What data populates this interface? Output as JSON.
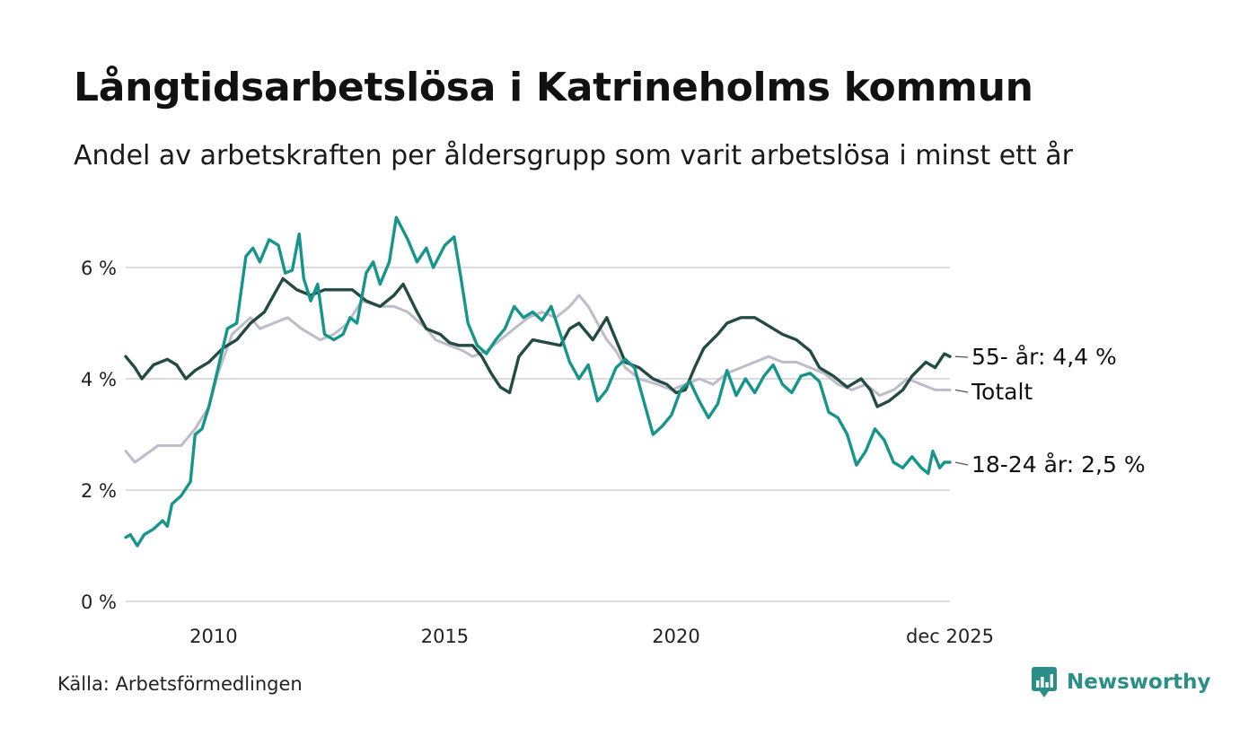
{
  "header": {
    "title": "Långtidsarbetslösa i Katrineholms kommun",
    "subtitle": "Andel av arbetskraften per åldersgrupp som varit arbetslösa i minst ett år"
  },
  "footer": {
    "source": "Källa: Arbetsförmedlingen",
    "brand": "Newsworthy"
  },
  "colors": {
    "age_55": "#244b43",
    "total": "#bfbcca",
    "age_18_24": "#16958a",
    "grid": "#dcdcdc",
    "brand": "#2a8f87"
  },
  "chart_data": {
    "type": "line",
    "title": "Långtidsarbetslösa i Katrineholms kommun",
    "xlabel": "",
    "ylabel": "",
    "ylim": [
      0,
      7
    ],
    "xlim": [
      2008.1,
      2025.92
    ],
    "x_ticks": [
      {
        "value": 2010,
        "label": "2010"
      },
      {
        "value": 2015,
        "label": "2015"
      },
      {
        "value": 2020,
        "label": "2020"
      },
      {
        "value": 2025.92,
        "label": "dec 2025"
      }
    ],
    "y_ticks": [
      {
        "value": 0,
        "label": "0 %"
      },
      {
        "value": 2,
        "label": "2 %"
      },
      {
        "value": 4,
        "label": "4 %"
      },
      {
        "value": 6,
        "label": "6 %"
      }
    ],
    "grid": true,
    "series": [
      {
        "name": "Totalt",
        "label": "Totalt",
        "color_key": "total",
        "points": [
          [
            2008.1,
            2.7
          ],
          [
            2008.3,
            2.5
          ],
          [
            2008.8,
            2.8
          ],
          [
            2009.3,
            2.8
          ],
          [
            2009.6,
            3.1
          ],
          [
            2009.9,
            3.5
          ],
          [
            2010.1,
            4.1
          ],
          [
            2010.4,
            4.8
          ],
          [
            2010.8,
            5.1
          ],
          [
            2011.0,
            4.9
          ],
          [
            2011.3,
            5.0
          ],
          [
            2011.6,
            5.1
          ],
          [
            2011.9,
            4.9
          ],
          [
            2012.3,
            4.7
          ],
          [
            2012.6,
            4.8
          ],
          [
            2012.9,
            5.0
          ],
          [
            2013.2,
            5.4
          ],
          [
            2013.6,
            5.3
          ],
          [
            2013.9,
            5.3
          ],
          [
            2014.2,
            5.2
          ],
          [
            2014.6,
            4.9
          ],
          [
            2014.8,
            4.7
          ],
          [
            2015.1,
            4.6
          ],
          [
            2015.4,
            4.5
          ],
          [
            2015.6,
            4.4
          ],
          [
            2015.9,
            4.5
          ],
          [
            2016.2,
            4.7
          ],
          [
            2016.5,
            4.9
          ],
          [
            2016.8,
            5.1
          ],
          [
            2017.1,
            5.2
          ],
          [
            2017.4,
            5.1
          ],
          [
            2017.7,
            5.3
          ],
          [
            2017.9,
            5.5
          ],
          [
            2018.1,
            5.3
          ],
          [
            2018.3,
            5.0
          ],
          [
            2018.5,
            4.7
          ],
          [
            2018.7,
            4.5
          ],
          [
            2018.9,
            4.2
          ],
          [
            2019.2,
            4.0
          ],
          [
            2019.6,
            3.9
          ],
          [
            2019.9,
            3.8
          ],
          [
            2020.2,
            3.9
          ],
          [
            2020.5,
            4.0
          ],
          [
            2020.8,
            3.9
          ],
          [
            2021.1,
            4.1
          ],
          [
            2021.4,
            4.2
          ],
          [
            2021.7,
            4.3
          ],
          [
            2022.0,
            4.4
          ],
          [
            2022.3,
            4.3
          ],
          [
            2022.6,
            4.3
          ],
          [
            2022.9,
            4.2
          ],
          [
            2023.2,
            4.1
          ],
          [
            2023.5,
            3.9
          ],
          [
            2023.8,
            3.8
          ],
          [
            2024.1,
            3.9
          ],
          [
            2024.4,
            3.7
          ],
          [
            2024.7,
            3.8
          ],
          [
            2025.0,
            4.0
          ],
          [
            2025.3,
            3.9
          ],
          [
            2025.6,
            3.8
          ],
          [
            2025.92,
            3.8
          ]
        ]
      },
      {
        "name": "55- år",
        "label": "55- år: 4,4 %",
        "color_key": "age_55",
        "points": [
          [
            2008.1,
            4.4
          ],
          [
            2008.3,
            4.2
          ],
          [
            2008.45,
            4.0
          ],
          [
            2008.7,
            4.25
          ],
          [
            2009.0,
            4.35
          ],
          [
            2009.2,
            4.25
          ],
          [
            2009.4,
            4.0
          ],
          [
            2009.6,
            4.15
          ],
          [
            2009.9,
            4.3
          ],
          [
            2010.2,
            4.55
          ],
          [
            2010.5,
            4.7
          ],
          [
            2010.8,
            5.0
          ],
          [
            2011.1,
            5.2
          ],
          [
            2011.3,
            5.5
          ],
          [
            2011.5,
            5.8
          ],
          [
            2011.8,
            5.6
          ],
          [
            2012.1,
            5.5
          ],
          [
            2012.4,
            5.6
          ],
          [
            2012.7,
            5.6
          ],
          [
            2013.0,
            5.6
          ],
          [
            2013.3,
            5.4
          ],
          [
            2013.6,
            5.3
          ],
          [
            2013.9,
            5.5
          ],
          [
            2014.1,
            5.7
          ],
          [
            2014.4,
            5.2
          ],
          [
            2014.6,
            4.9
          ],
          [
            2014.9,
            4.8
          ],
          [
            2015.1,
            4.65
          ],
          [
            2015.3,
            4.6
          ],
          [
            2015.6,
            4.6
          ],
          [
            2015.8,
            4.4
          ],
          [
            2016.0,
            4.1
          ],
          [
            2016.2,
            3.85
          ],
          [
            2016.4,
            3.75
          ],
          [
            2016.6,
            4.4
          ],
          [
            2016.9,
            4.7
          ],
          [
            2017.2,
            4.65
          ],
          [
            2017.5,
            4.6
          ],
          [
            2017.7,
            4.9
          ],
          [
            2017.9,
            5.0
          ],
          [
            2018.2,
            4.7
          ],
          [
            2018.5,
            5.1
          ],
          [
            2018.7,
            4.7
          ],
          [
            2018.9,
            4.3
          ],
          [
            2019.2,
            4.2
          ],
          [
            2019.5,
            4.0
          ],
          [
            2019.8,
            3.9
          ],
          [
            2020.0,
            3.75
          ],
          [
            2020.2,
            3.8
          ],
          [
            2020.4,
            4.2
          ],
          [
            2020.6,
            4.55
          ],
          [
            2020.9,
            4.8
          ],
          [
            2021.1,
            5.0
          ],
          [
            2021.4,
            5.1
          ],
          [
            2021.7,
            5.1
          ],
          [
            2022.0,
            4.95
          ],
          [
            2022.3,
            4.8
          ],
          [
            2022.6,
            4.7
          ],
          [
            2022.9,
            4.5
          ],
          [
            2023.1,
            4.2
          ],
          [
            2023.4,
            4.05
          ],
          [
            2023.7,
            3.85
          ],
          [
            2024.0,
            4.0
          ],
          [
            2024.2,
            3.8
          ],
          [
            2024.35,
            3.5
          ],
          [
            2024.6,
            3.6
          ],
          [
            2024.9,
            3.8
          ],
          [
            2025.1,
            4.05
          ],
          [
            2025.4,
            4.3
          ],
          [
            2025.6,
            4.2
          ],
          [
            2025.8,
            4.45
          ],
          [
            2025.92,
            4.4
          ]
        ]
      },
      {
        "name": "18-24 år",
        "label": "18-24 år: 2,5 %",
        "color_key": "age_18_24",
        "points": [
          [
            2008.1,
            1.15
          ],
          [
            2008.2,
            1.2
          ],
          [
            2008.35,
            1.0
          ],
          [
            2008.5,
            1.2
          ],
          [
            2008.7,
            1.3
          ],
          [
            2008.9,
            1.45
          ],
          [
            2009.0,
            1.35
          ],
          [
            2009.1,
            1.75
          ],
          [
            2009.3,
            1.9
          ],
          [
            2009.5,
            2.15
          ],
          [
            2009.6,
            3.0
          ],
          [
            2009.75,
            3.1
          ],
          [
            2009.9,
            3.5
          ],
          [
            2010.1,
            4.2
          ],
          [
            2010.3,
            4.9
          ],
          [
            2010.5,
            5.0
          ],
          [
            2010.7,
            6.2
          ],
          [
            2010.85,
            6.35
          ],
          [
            2011.0,
            6.1
          ],
          [
            2011.2,
            6.5
          ],
          [
            2011.4,
            6.4
          ],
          [
            2011.55,
            5.9
          ],
          [
            2011.7,
            5.95
          ],
          [
            2011.85,
            6.6
          ],
          [
            2011.95,
            5.8
          ],
          [
            2012.1,
            5.4
          ],
          [
            2012.25,
            5.7
          ],
          [
            2012.4,
            4.8
          ],
          [
            2012.6,
            4.7
          ],
          [
            2012.8,
            4.8
          ],
          [
            2012.95,
            5.1
          ],
          [
            2013.1,
            5.0
          ],
          [
            2013.3,
            5.9
          ],
          [
            2013.45,
            6.1
          ],
          [
            2013.6,
            5.7
          ],
          [
            2013.8,
            6.1
          ],
          [
            2013.95,
            6.9
          ],
          [
            2014.2,
            6.5
          ],
          [
            2014.4,
            6.1
          ],
          [
            2014.6,
            6.35
          ],
          [
            2014.75,
            6.0
          ],
          [
            2015.0,
            6.4
          ],
          [
            2015.2,
            6.55
          ],
          [
            2015.35,
            5.8
          ],
          [
            2015.5,
            5.0
          ],
          [
            2015.7,
            4.6
          ],
          [
            2015.9,
            4.45
          ],
          [
            2016.1,
            4.7
          ],
          [
            2016.3,
            4.9
          ],
          [
            2016.5,
            5.3
          ],
          [
            2016.7,
            5.1
          ],
          [
            2016.9,
            5.2
          ],
          [
            2017.1,
            5.05
          ],
          [
            2017.3,
            5.3
          ],
          [
            2017.5,
            4.8
          ],
          [
            2017.7,
            4.3
          ],
          [
            2017.9,
            4.0
          ],
          [
            2018.1,
            4.25
          ],
          [
            2018.3,
            3.6
          ],
          [
            2018.5,
            3.8
          ],
          [
            2018.7,
            4.2
          ],
          [
            2018.9,
            4.35
          ],
          [
            2019.1,
            4.2
          ],
          [
            2019.3,
            3.6
          ],
          [
            2019.5,
            3.0
          ],
          [
            2019.7,
            3.15
          ],
          [
            2019.9,
            3.35
          ],
          [
            2020.1,
            3.8
          ],
          [
            2020.3,
            3.95
          ],
          [
            2020.5,
            3.6
          ],
          [
            2020.7,
            3.3
          ],
          [
            2020.9,
            3.55
          ],
          [
            2021.1,
            4.15
          ],
          [
            2021.3,
            3.7
          ],
          [
            2021.5,
            4.0
          ],
          [
            2021.7,
            3.75
          ],
          [
            2021.9,
            4.05
          ],
          [
            2022.1,
            4.25
          ],
          [
            2022.3,
            3.9
          ],
          [
            2022.5,
            3.75
          ],
          [
            2022.7,
            4.05
          ],
          [
            2022.9,
            4.1
          ],
          [
            2023.1,
            3.95
          ],
          [
            2023.3,
            3.4
          ],
          [
            2023.5,
            3.3
          ],
          [
            2023.7,
            3.0
          ],
          [
            2023.9,
            2.45
          ],
          [
            2024.1,
            2.7
          ],
          [
            2024.3,
            3.1
          ],
          [
            2024.5,
            2.9
          ],
          [
            2024.7,
            2.5
          ],
          [
            2024.9,
            2.4
          ],
          [
            2025.1,
            2.6
          ],
          [
            2025.3,
            2.4
          ],
          [
            2025.45,
            2.3
          ],
          [
            2025.55,
            2.7
          ],
          [
            2025.7,
            2.4
          ],
          [
            2025.8,
            2.5
          ],
          [
            2025.92,
            2.5
          ]
        ]
      }
    ]
  }
}
